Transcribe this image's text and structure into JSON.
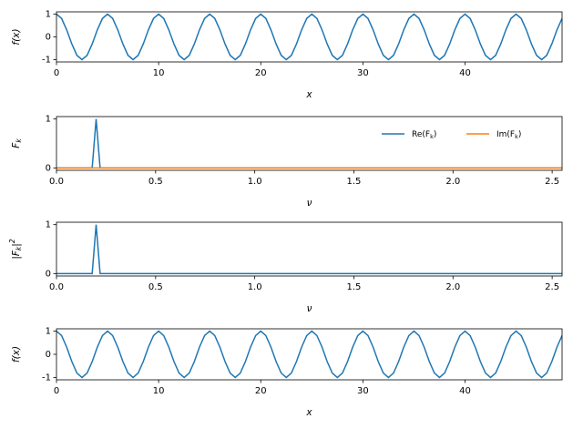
{
  "chart_data": [
    {
      "type": "line",
      "xlabel": "x",
      "ylabel": "f(x)",
      "xlim": [
        0,
        49.5
      ],
      "ylim": [
        -1.1,
        1.1
      ],
      "xticks": [
        0,
        10,
        20,
        30,
        40
      ],
      "yticks": [
        -1,
        0,
        1
      ],
      "series": [
        {
          "color": "#1f77b4",
          "x": [
            0,
            0.5,
            1,
            1.5,
            2,
            2.5,
            3,
            3.5,
            4,
            4.5,
            5,
            5.5,
            6,
            6.5,
            7,
            7.5,
            8,
            8.5,
            9,
            9.5,
            10,
            10.5,
            11,
            11.5,
            12,
            12.5,
            13,
            13.5,
            14,
            14.5,
            15,
            15.5,
            16,
            16.5,
            17,
            17.5,
            18,
            18.5,
            19,
            19.5,
            20,
            20.5,
            21,
            21.5,
            22,
            22.5,
            23,
            23.5,
            24,
            24.5,
            25,
            25.5,
            26,
            26.5,
            27,
            27.5,
            28,
            28.5,
            29,
            29.5,
            30,
            30.5,
            31,
            31.5,
            32,
            32.5,
            33,
            33.5,
            34,
            34.5,
            35,
            35.5,
            36,
            36.5,
            37,
            37.5,
            38,
            38.5,
            39,
            39.5,
            40,
            40.5,
            41,
            41.5,
            42,
            42.5,
            43,
            43.5,
            44,
            44.5,
            45,
            45.5,
            46,
            46.5,
            47,
            47.5,
            48,
            48.5,
            49,
            49.5
          ],
          "values": [
            1,
            0.809,
            0.309,
            -0.309,
            -0.809,
            -1,
            -0.809,
            -0.309,
            0.309,
            0.809,
            1,
            0.809,
            0.309,
            -0.309,
            -0.809,
            -1,
            -0.809,
            -0.309,
            0.309,
            0.809,
            1,
            0.809,
            0.309,
            -0.309,
            -0.809,
            -1,
            -0.809,
            -0.309,
            0.309,
            0.809,
            1,
            0.809,
            0.309,
            -0.309,
            -0.809,
            -1,
            -0.809,
            -0.309,
            0.309,
            0.809,
            1,
            0.809,
            0.309,
            -0.309,
            -0.809,
            -1,
            -0.809,
            -0.309,
            0.309,
            0.809,
            1,
            0.809,
            0.309,
            -0.309,
            -0.809,
            -1,
            -0.809,
            -0.309,
            0.309,
            0.809,
            1,
            0.809,
            0.309,
            -0.309,
            -0.809,
            -1,
            -0.809,
            -0.309,
            0.309,
            0.809,
            1,
            0.809,
            0.309,
            -0.309,
            -0.809,
            -1,
            -0.809,
            -0.309,
            0.309,
            0.809,
            1,
            0.809,
            0.309,
            -0.309,
            -0.809,
            -1,
            -0.809,
            -0.309,
            0.309,
            0.809,
            1,
            0.809,
            0.309,
            -0.309,
            -0.809,
            -1,
            -0.809,
            -0.309,
            0.309,
            0.809
          ]
        }
      ]
    },
    {
      "type": "line",
      "xlabel": "ν",
      "ylabel": "F_k",
      "xlim": [
        0,
        2.55
      ],
      "ylim": [
        -0.05,
        1.05
      ],
      "xticks": [
        {
          "value": 0,
          "label": "0.0"
        },
        0.5,
        {
          "value": 1,
          "label": "1.0"
        },
        1.5,
        {
          "value": 2,
          "label": "2.0"
        },
        2.5
      ],
      "yticks": [
        0,
        1
      ],
      "legend": "upper right",
      "series": [
        {
          "name": "Re(F_k)",
          "color": "#1f77b4",
          "x": [
            0,
            0.18,
            0.2,
            0.22,
            2.55
          ],
          "values": [
            0,
            0,
            1,
            0,
            0
          ]
        },
        {
          "name": "Im(F_k)",
          "color": "#ff7f0e",
          "x": [
            0,
            0.18,
            0.2,
            0.22,
            2.55
          ],
          "values": [
            0,
            0,
            0,
            0,
            0
          ]
        }
      ]
    },
    {
      "type": "line",
      "xlabel": "ν",
      "ylabel": "|F_k|^2",
      "xlim": [
        0,
        2.55
      ],
      "ylim": [
        -0.05,
        1.05
      ],
      "xticks": [
        {
          "value": 0,
          "label": "0.0"
        },
        0.5,
        {
          "value": 1,
          "label": "1.0"
        },
        1.5,
        {
          "value": 2,
          "label": "2.0"
        },
        2.5
      ],
      "yticks": [
        0,
        1
      ],
      "series": [
        {
          "color": "#1f77b4",
          "x": [
            0,
            0.18,
            0.2,
            0.22,
            2.55
          ],
          "values": [
            0,
            0,
            1,
            0,
            0
          ]
        }
      ]
    },
    {
      "type": "line",
      "xlabel": "x",
      "ylabel": "f(x)",
      "xlim": [
        0,
        49.5
      ],
      "ylim": [
        -1.1,
        1.1
      ],
      "xticks": [
        0,
        10,
        20,
        30,
        40
      ],
      "yticks": [
        -1,
        0,
        1
      ],
      "series": [
        {
          "color": "#1f77b4",
          "x": [
            0,
            0.5,
            1,
            1.5,
            2,
            2.5,
            3,
            3.5,
            4,
            4.5,
            5,
            5.5,
            6,
            6.5,
            7,
            7.5,
            8,
            8.5,
            9,
            9.5,
            10,
            10.5,
            11,
            11.5,
            12,
            12.5,
            13,
            13.5,
            14,
            14.5,
            15,
            15.5,
            16,
            16.5,
            17,
            17.5,
            18,
            18.5,
            19,
            19.5,
            20,
            20.5,
            21,
            21.5,
            22,
            22.5,
            23,
            23.5,
            24,
            24.5,
            25,
            25.5,
            26,
            26.5,
            27,
            27.5,
            28,
            28.5,
            29,
            29.5,
            30,
            30.5,
            31,
            31.5,
            32,
            32.5,
            33,
            33.5,
            34,
            34.5,
            35,
            35.5,
            36,
            36.5,
            37,
            37.5,
            38,
            38.5,
            39,
            39.5,
            40,
            40.5,
            41,
            41.5,
            42,
            42.5,
            43,
            43.5,
            44,
            44.5,
            45,
            45.5,
            46,
            46.5,
            47,
            47.5,
            48,
            48.5,
            49,
            49.5
          ],
          "values": [
            1,
            0.809,
            0.309,
            -0.309,
            -0.809,
            -1,
            -0.809,
            -0.309,
            0.309,
            0.809,
            1,
            0.809,
            0.309,
            -0.309,
            -0.809,
            -1,
            -0.809,
            -0.309,
            0.309,
            0.809,
            1,
            0.809,
            0.309,
            -0.309,
            -0.809,
            -1,
            -0.809,
            -0.309,
            0.309,
            0.809,
            1,
            0.809,
            0.309,
            -0.309,
            -0.809,
            -1,
            -0.809,
            -0.309,
            0.309,
            0.809,
            1,
            0.809,
            0.309,
            -0.309,
            -0.809,
            -1,
            -0.809,
            -0.309,
            0.309,
            0.809,
            1,
            0.809,
            0.309,
            -0.309,
            -0.809,
            -1,
            -0.809,
            -0.309,
            0.309,
            0.809,
            1,
            0.809,
            0.309,
            -0.309,
            -0.809,
            -1,
            -0.809,
            -0.309,
            0.309,
            0.809,
            1,
            0.809,
            0.309,
            -0.309,
            -0.809,
            -1,
            -0.809,
            -0.309,
            0.309,
            0.809,
            1,
            0.809,
            0.309,
            -0.309,
            -0.809,
            -1,
            -0.809,
            -0.309,
            0.309,
            0.809,
            1,
            0.809,
            0.309,
            -0.309,
            -0.809,
            -1,
            -0.809,
            -0.309,
            0.309,
            0.809
          ]
        }
      ]
    }
  ]
}
